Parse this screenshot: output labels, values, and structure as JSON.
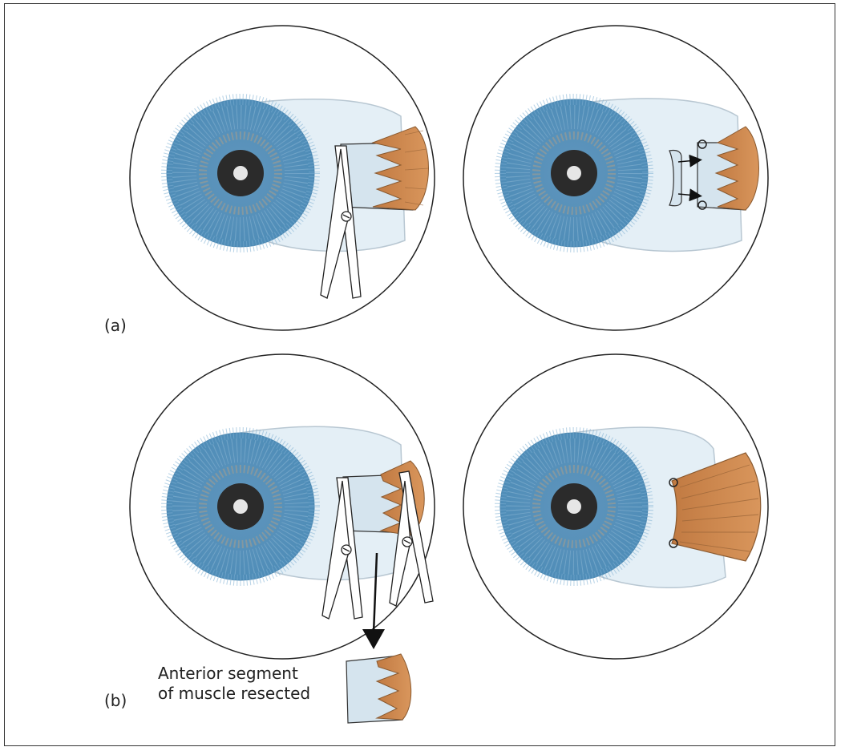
{
  "labels": {
    "panel_a": "(a)",
    "panel_b": "(b)",
    "annotation_line1": "Anterior segment",
    "annotation_line2": "of muscle resected"
  },
  "colors": {
    "iris": "#5a96c0",
    "pupil": "#2b2b2b",
    "sclera_tint": "#e8f2f8",
    "tendon": "#d4e4ee",
    "muscle": "#c98a50",
    "outline": "#333333"
  }
}
